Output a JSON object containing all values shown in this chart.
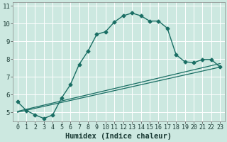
{
  "xlabel": "Humidex (Indice chaleur)",
  "bg_color": "#cce8e0",
  "grid_color": "#ffffff",
  "line_color": "#1a6e64",
  "xlim": [
    -0.5,
    23.5
  ],
  "ylim": [
    4.5,
    11.2
  ],
  "xticks": [
    0,
    1,
    2,
    3,
    4,
    5,
    6,
    7,
    8,
    9,
    10,
    11,
    12,
    13,
    14,
    15,
    16,
    17,
    18,
    19,
    20,
    21,
    22,
    23
  ],
  "yticks": [
    5,
    6,
    7,
    8,
    9,
    10,
    11
  ],
  "line1_x": [
    0,
    1,
    2,
    3,
    4,
    5,
    6,
    7,
    8,
    9,
    10,
    11,
    12,
    13,
    14,
    15,
    16,
    17,
    18,
    19,
    20,
    21,
    22,
    23
  ],
  "line1_y": [
    5.6,
    5.1,
    4.85,
    4.65,
    4.85,
    5.8,
    6.55,
    7.7,
    8.45,
    9.4,
    9.55,
    10.1,
    10.45,
    10.6,
    10.45,
    10.15,
    10.15,
    9.75,
    8.25,
    7.85,
    7.8,
    7.98,
    7.98,
    7.55
  ],
  "line2_x": [
    0,
    23
  ],
  "line2_y": [
    5.0,
    7.55
  ],
  "line3_x": [
    0,
    23
  ],
  "line3_y": [
    5.05,
    7.75
  ],
  "xlabel_fontsize": 7.5,
  "tick_fontsize": 6.0
}
